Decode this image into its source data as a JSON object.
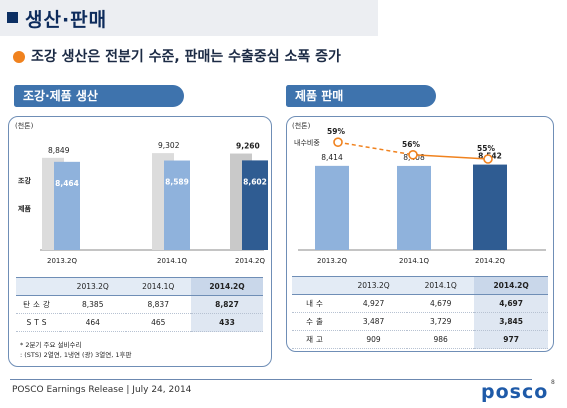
{
  "page": {
    "title": "생산·판매",
    "headline": "조강 생산은 전분기 수준, 판매는 수출중심 소폭 증가"
  },
  "production": {
    "tab_label": "조강·제품 생산",
    "unit": "(천톤)",
    "crude_label": "조강",
    "product_label": "제품"
  },
  "sales": {
    "tab_label": "제품 판매",
    "unit": "(천톤)",
    "ratio_label": "내수비중"
  },
  "colors": {
    "navy": "#0c2f63",
    "tab_blue": "#3e73ad",
    "crude_gray": "#dcdcdc",
    "product_light": "#8fb2dc",
    "product_dark": "#2f5c92",
    "orange": "#f0821e"
  },
  "chart_data": [
    {
      "type": "bar",
      "categories": [
        "2013.2Q",
        "2014.1Q",
        "2014.2Q"
      ],
      "series": [
        {
          "name": "조강",
          "values": [
            8849,
            9302,
            9260
          ]
        },
        {
          "name": "제품",
          "values": [
            8464,
            8589,
            8602
          ]
        }
      ],
      "highlight_category": "2014.2Q",
      "unit": "(천톤)"
    },
    {
      "type": "bar",
      "categories": [
        "2013.2Q",
        "2014.1Q",
        "2014.2Q"
      ],
      "series": [
        {
          "values": [
            8414,
            8408,
            8542
          ]
        }
      ],
      "line_series": {
        "name": "내수비중",
        "values": [
          59,
          56,
          55
        ],
        "labels": [
          "59%",
          "56%",
          "55%"
        ]
      },
      "highlight_category": "2014.2Q",
      "unit": "(천톤)"
    }
  ],
  "production_table": {
    "headers": [
      "",
      "2013.2Q",
      "2014.1Q",
      "2014.2Q"
    ],
    "rows": [
      {
        "label": "탄소강",
        "values": [
          "8,385",
          "8,837",
          "8,827"
        ]
      },
      {
        "label": "STS",
        "values": [
          "464",
          "465",
          "433"
        ]
      }
    ]
  },
  "sales_table": {
    "headers": [
      "",
      "2013.2Q",
      "2014.1Q",
      "2014.2Q"
    ],
    "rows": [
      {
        "label": "내수",
        "values": [
          "4,927",
          "4,679",
          "4,697"
        ]
      },
      {
        "label": "수출",
        "values": [
          "3,487",
          "3,729",
          "3,845"
        ]
      },
      {
        "label": "재고",
        "values": [
          "909",
          "986",
          "977"
        ]
      }
    ]
  },
  "notes": {
    "line1": "* 2분기 주요 설비수리",
    "line2": ": (STS) 2열연, 1냉연  (광) 3열연, 1후판"
  },
  "footer": {
    "text": "POSCO Earnings Release  | July 24, 2014",
    "logo": "posco",
    "page_number": "8"
  }
}
